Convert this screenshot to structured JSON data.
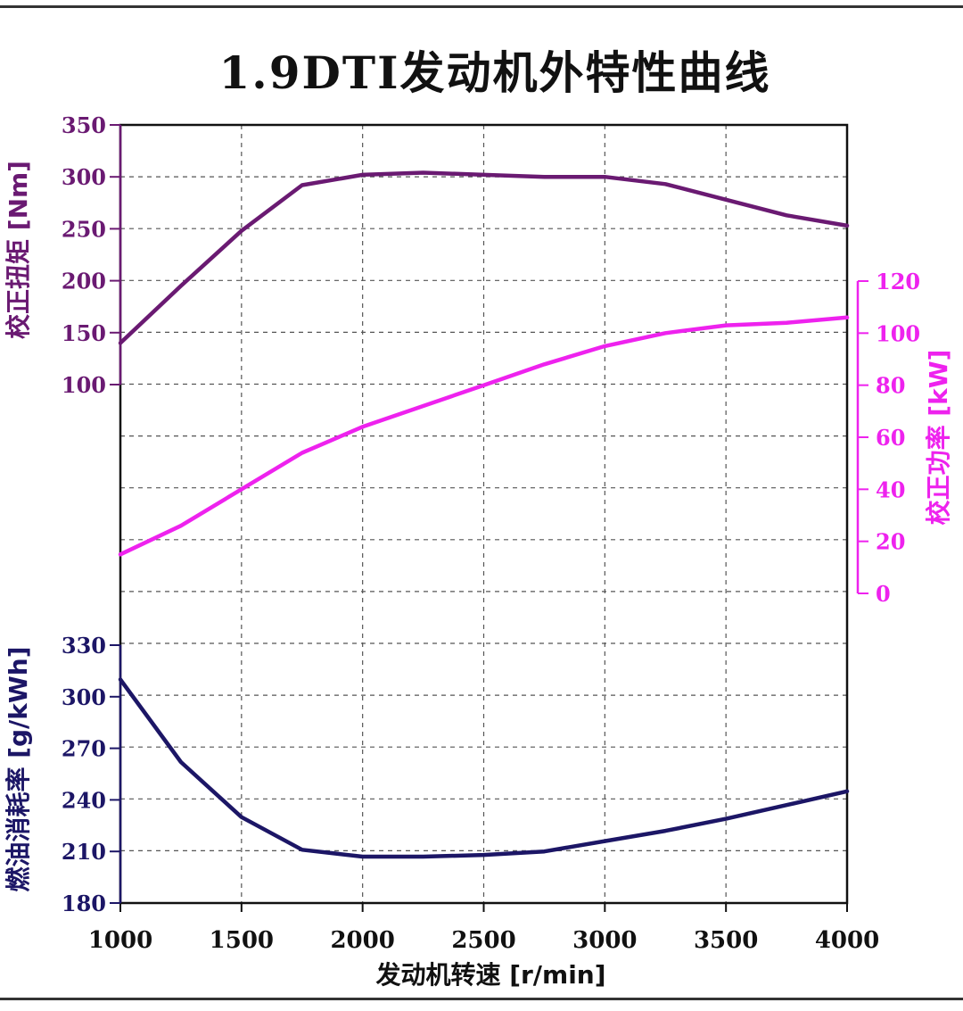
{
  "title": "1.9DTI发动机外特性曲线",
  "colors": {
    "torque": "#6a1a72",
    "power": "#ee22ee",
    "bsfc": "#1c1666",
    "grid": "#555555",
    "frame": "#111111"
  },
  "chart_data": {
    "type": "line",
    "title": "1.9DTI发动机外特性曲线",
    "xlabel": "发动机转速 [r/min]",
    "x_ticks": [
      "1000",
      "1500",
      "2000",
      "2500",
      "3000",
      "3500",
      "4000"
    ],
    "xlim": [
      1000,
      4000
    ],
    "grid": true,
    "axes": [
      {
        "id": "torque",
        "side": "left",
        "label": "校正扭矩 [Nm]",
        "ylim": [
          100,
          350
        ],
        "ticks": [
          "350",
          "300",
          "250",
          "200",
          "150",
          "100"
        ]
      },
      {
        "id": "power",
        "side": "right",
        "label": "校正功率 [kW]",
        "ylim": [
          0,
          120
        ],
        "ticks": [
          "120",
          "100",
          "80",
          "60",
          "40",
          "20",
          "0"
        ]
      },
      {
        "id": "bsfc",
        "side": "left",
        "label": "燃油消耗率 [g/kWh]",
        "ylim": [
          180,
          330
        ],
        "ticks": [
          "330",
          "300",
          "270",
          "240",
          "210",
          "180"
        ]
      }
    ],
    "series": [
      {
        "axis": "torque",
        "x": [
          1000,
          1250,
          1500,
          1750,
          2000,
          2250,
          2500,
          2750,
          3000,
          3250,
          3500,
          3750,
          4000
        ],
        "y": [
          140,
          195,
          248,
          292,
          302,
          304,
          302,
          300,
          300,
          293,
          278,
          263,
          253
        ]
      },
      {
        "axis": "power",
        "x": [
          1000,
          1250,
          1500,
          1750,
          2000,
          2250,
          2500,
          2750,
          3000,
          3250,
          3500,
          3750,
          4000
        ],
        "y": [
          15,
          26,
          40,
          54,
          64,
          72,
          80,
          88,
          95,
          100,
          103,
          104,
          106
        ]
      },
      {
        "axis": "bsfc",
        "x": [
          1000,
          1250,
          1500,
          1750,
          2000,
          2250,
          2500,
          2750,
          3000,
          3250,
          3500,
          3750,
          4000
        ],
        "y": [
          310,
          262,
          230,
          211,
          207,
          207,
          208,
          210,
          216,
          222,
          229,
          237,
          245
        ]
      }
    ]
  }
}
